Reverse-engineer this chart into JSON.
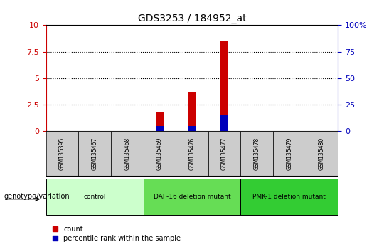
{
  "title": "GDS3253 / 184952_at",
  "samples": [
    "GSM135395",
    "GSM135467",
    "GSM135468",
    "GSM135469",
    "GSM135476",
    "GSM135477",
    "GSM135478",
    "GSM135479",
    "GSM135480"
  ],
  "counts": [
    0,
    0,
    0,
    1.85,
    3.7,
    8.5,
    0,
    0,
    0
  ],
  "percentiles_pct": [
    0,
    0,
    0,
    5,
    5,
    15,
    0,
    0,
    0
  ],
  "ylim_left": [
    0,
    10
  ],
  "ylim_right": [
    0,
    100
  ],
  "yticks_left": [
    0,
    2.5,
    5,
    7.5,
    10
  ],
  "yticks_right": [
    0,
    25,
    50,
    75,
    100
  ],
  "ytick_labels_left": [
    "0",
    "2.5",
    "5",
    "7.5",
    "10"
  ],
  "ytick_labels_right": [
    "0",
    "25",
    "50",
    "75",
    "100%"
  ],
  "bar_width": 0.25,
  "bar_color_red": "#cc0000",
  "bar_color_blue": "#0000bb",
  "groups": [
    {
      "label": "control",
      "indices": [
        0,
        1,
        2
      ],
      "color": "#ccffcc"
    },
    {
      "label": "DAF-16 deletion mutant",
      "indices": [
        3,
        4,
        5
      ],
      "color": "#66dd55"
    },
    {
      "label": "PMK-1 deletion mutant",
      "indices": [
        6,
        7,
        8
      ],
      "color": "#33cc33"
    }
  ],
  "legend_count_label": "count",
  "legend_percentile_label": "percentile rank within the sample",
  "genotype_label": "genotype/variation",
  "background_color": "#ffffff",
  "sample_bg_color": "#cccccc",
  "left_axis_color": "#cc0000",
  "right_axis_color": "#0000bb"
}
